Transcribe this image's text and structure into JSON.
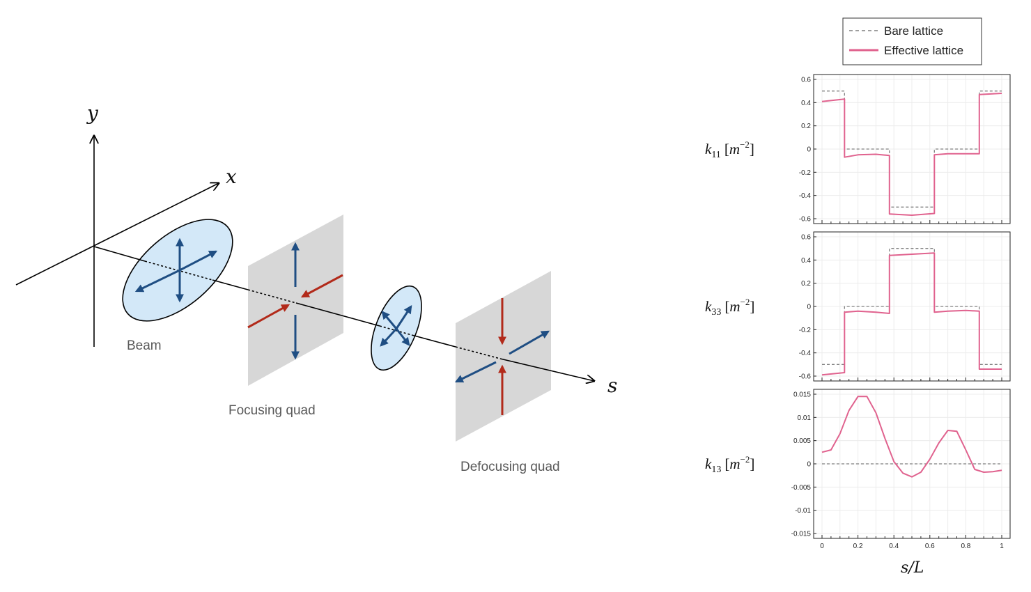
{
  "diagram": {
    "axes": {
      "y": "y",
      "x": "x",
      "s": "s"
    },
    "labels": {
      "beam": "Beam",
      "focusing": "Focusing quad",
      "defocusing": "Defocusing quad"
    },
    "colors": {
      "ellipse_fill": "#d3e8f8",
      "arrow_blue": "#1f4e83",
      "arrow_red": "#b22a1a",
      "quad_fill": "#d7d7d7"
    }
  },
  "legend": {
    "bare": "Bare lattice",
    "effective": "Effective lattice",
    "bare_color": "#7f7f7f",
    "effective_color": "#e0628e"
  },
  "chart_data": [
    {
      "type": "line",
      "ylabel": {
        "sym": "k",
        "sub": "11",
        "unit": "m",
        "exp": "−2"
      },
      "ylim": [
        -0.6,
        0.6
      ],
      "yticks": [
        "0.6",
        "0.4",
        "0.2",
        "0",
        "-0.2",
        "-0.4",
        "-0.6"
      ],
      "grid": true,
      "series": [
        {
          "name": "Bare lattice",
          "style": "dashed",
          "x": [
            0,
            0.125,
            0.125,
            0.375,
            0.375,
            0.625,
            0.625,
            0.875,
            0.875,
            1
          ],
          "y": [
            0.5,
            0.5,
            0,
            0,
            -0.5,
            -0.5,
            0,
            0,
            0.5,
            0.5
          ]
        },
        {
          "name": "Effective lattice",
          "style": "solid",
          "x": [
            0,
            0.125,
            0.125,
            0.2,
            0.3,
            0.375,
            0.375,
            0.5,
            0.625,
            0.625,
            0.7,
            0.8,
            0.875,
            0.875,
            1
          ],
          "y": [
            0.41,
            0.43,
            -0.07,
            -0.05,
            -0.045,
            -0.055,
            -0.56,
            -0.57,
            -0.555,
            -0.05,
            -0.04,
            -0.04,
            -0.04,
            0.47,
            0.48
          ]
        }
      ]
    },
    {
      "type": "line",
      "ylabel": {
        "sym": "k",
        "sub": "33",
        "unit": "m",
        "exp": "−2"
      },
      "ylim": [
        -0.6,
        0.6
      ],
      "yticks": [
        "0.6",
        "0.4",
        "0.2",
        "0",
        "-0.2",
        "-0.4",
        "-0.6"
      ],
      "grid": true,
      "series": [
        {
          "name": "Bare lattice",
          "style": "dashed",
          "x": [
            0,
            0.125,
            0.125,
            0.375,
            0.375,
            0.625,
            0.625,
            0.875,
            0.875,
            1
          ],
          "y": [
            -0.5,
            -0.5,
            0,
            0,
            0.5,
            0.5,
            0,
            0,
            -0.5,
            -0.5
          ]
        },
        {
          "name": "Effective lattice",
          "style": "solid",
          "x": [
            0,
            0.125,
            0.125,
            0.2,
            0.3,
            0.375,
            0.375,
            0.5,
            0.625,
            0.625,
            0.7,
            0.8,
            0.875,
            0.875,
            1
          ],
          "y": [
            -0.59,
            -0.57,
            -0.05,
            -0.04,
            -0.05,
            -0.06,
            0.44,
            0.45,
            0.46,
            -0.05,
            -0.04,
            -0.035,
            -0.04,
            -0.54,
            -0.54
          ]
        }
      ]
    },
    {
      "type": "line",
      "ylabel": {
        "sym": "k",
        "sub": "13",
        "unit": "m",
        "exp": "−2"
      },
      "ylim": [
        -0.015,
        0.015
      ],
      "yticks": [
        "0.015",
        "0.01",
        "0.005",
        "0",
        "-0.005",
        "-0.01",
        "-0.015"
      ],
      "xticks": [
        "0",
        "0.2",
        "0.4",
        "0.6",
        "0.8",
        "1"
      ],
      "xlabel": "s/L",
      "grid": true,
      "series": [
        {
          "name": "Bare lattice",
          "style": "dashed",
          "x": [
            0,
            1
          ],
          "y": [
            0,
            0
          ]
        },
        {
          "name": "Effective lattice",
          "style": "solid",
          "x": [
            0,
            0.05,
            0.1,
            0.15,
            0.2,
            0.25,
            0.3,
            0.35,
            0.4,
            0.45,
            0.5,
            0.55,
            0.6,
            0.65,
            0.7,
            0.75,
            0.8,
            0.85,
            0.9,
            0.95,
            1
          ],
          "y": [
            0.0025,
            0.003,
            0.0065,
            0.0115,
            0.0145,
            0.0145,
            0.011,
            0.0055,
            0.0005,
            -0.002,
            -0.0028,
            -0.0018,
            0.001,
            0.0045,
            0.0072,
            0.007,
            0.003,
            -0.0012,
            -0.0018,
            -0.0017,
            -0.0014
          ]
        }
      ]
    }
  ]
}
